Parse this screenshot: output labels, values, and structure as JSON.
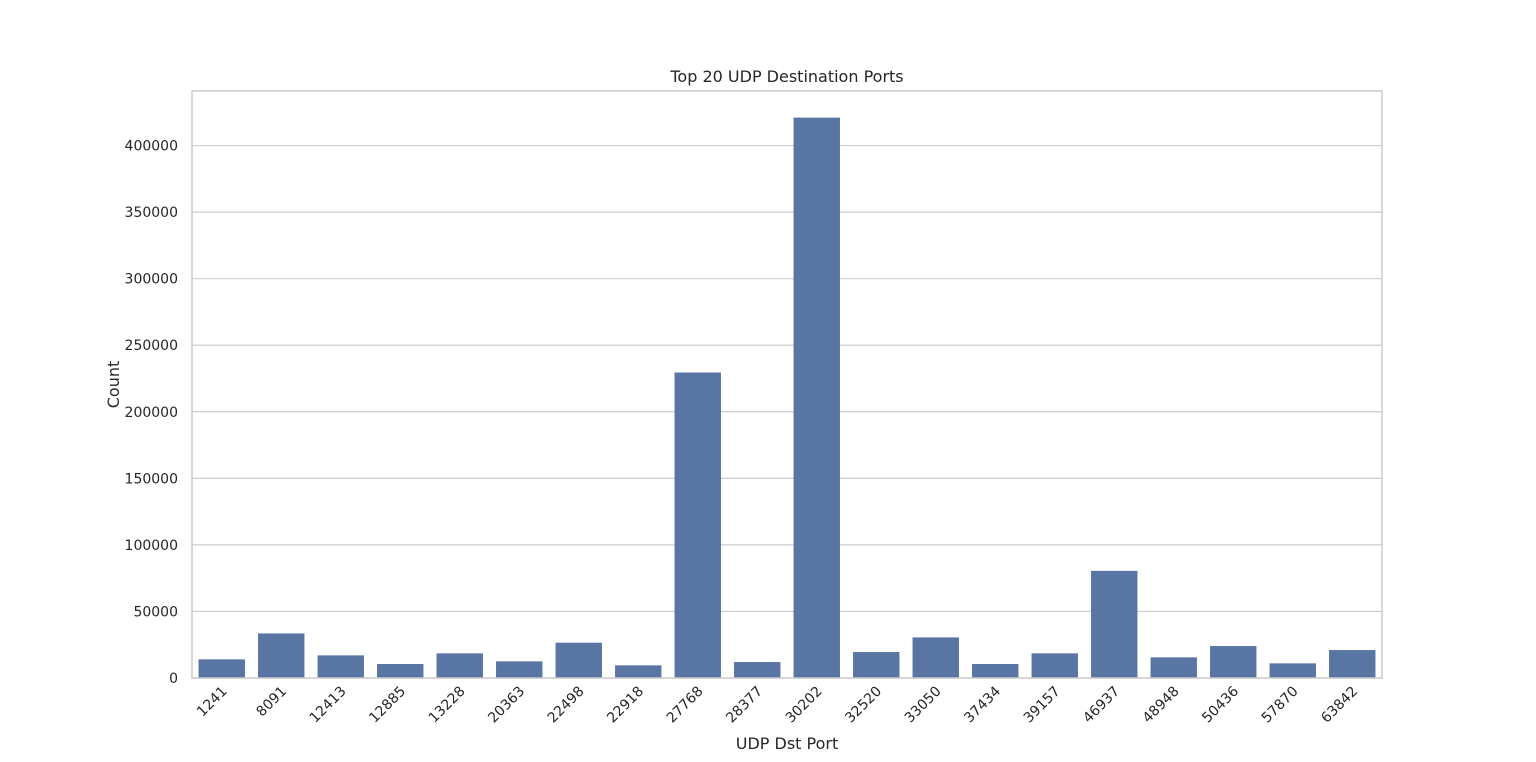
{
  "chart_data": {
    "type": "bar",
    "title": "Top 20 UDP Destination Ports",
    "xlabel": "UDP Dst Port",
    "ylabel": "Count",
    "categories": [
      "1241",
      "8091",
      "12413",
      "12885",
      "13228",
      "20363",
      "22498",
      "22918",
      "27768",
      "28377",
      "30202",
      "32520",
      "33050",
      "37434",
      "39157",
      "46937",
      "48948",
      "50436",
      "57870",
      "63842"
    ],
    "values": [
      14000,
      33500,
      17000,
      10500,
      18500,
      12500,
      26500,
      9500,
      229500,
      12000,
      421000,
      19500,
      30500,
      10500,
      18500,
      80500,
      15500,
      24000,
      11000,
      21000
    ],
    "ylim": [
      0,
      441000
    ],
    "yticks": [
      0,
      50000,
      100000,
      150000,
      200000,
      250000,
      300000,
      350000,
      400000
    ],
    "grid": true,
    "bar_color": "#5975a4"
  }
}
